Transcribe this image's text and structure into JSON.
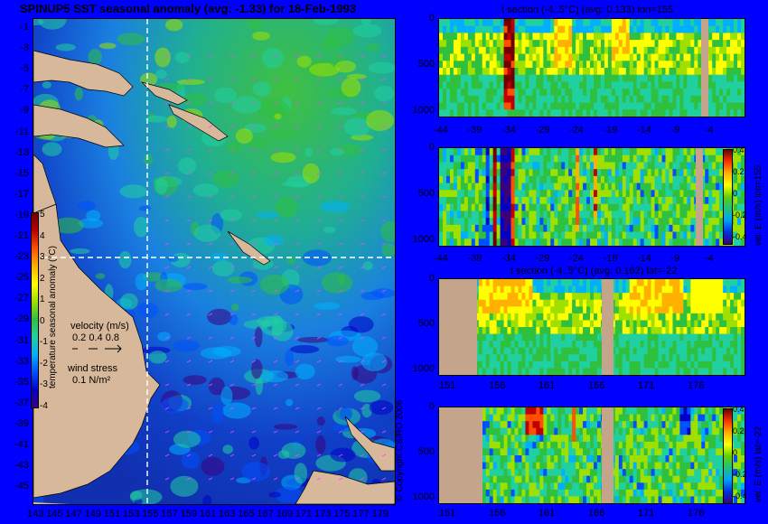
{
  "colors": {
    "background": "#0000ff",
    "land": "#d8b89a",
    "section_land": "#c4a48a"
  },
  "colormap": [
    "#3a007f",
    "#0000c8",
    "#0050ff",
    "#00b0ff",
    "#20d0a0",
    "#30c040",
    "#a0e000",
    "#ffff00",
    "#ffb000",
    "#ff5000",
    "#c00000",
    "#700000"
  ],
  "map": {
    "title": "SPINUP5 SST seasonal anomaly (avg: -1.33) for 18-Feb-1993",
    "y_ticks": [
      "-1",
      "-3",
      "-5",
      "-7",
      "-9",
      "-11",
      "-13",
      "-15",
      "-17",
      "-19",
      "-21",
      "-23",
      "-25",
      "-27",
      "-29",
      "-31",
      "-33",
      "-35",
      "-37",
      "-39",
      "-41",
      "-43",
      "-45"
    ],
    "x_ticks": [
      "143",
      "145",
      "147",
      "149",
      "151",
      "153",
      "155",
      "157",
      "159",
      "161",
      "163",
      "165",
      "167",
      "169",
      "171",
      "173",
      "175",
      "177",
      "179"
    ],
    "colorbar_ticks": [
      "5",
      "4",
      "3",
      "2",
      "1",
      "0",
      "-1",
      "-2",
      "-3",
      "-4"
    ],
    "colorbar_label": "temperature seasonal anomaly (°C)",
    "velocity_label": "velocity (m/s)",
    "velocity_scale": "0.2 0.4 0.8",
    "windstress_label": "wind stress",
    "windstress_scale": "0.1 N/m²",
    "copyright": "© Copyright CSIRO 2006"
  },
  "chart_data": [
    {
      "type": "heatmap",
      "name": "SST seasonal anomaly map",
      "title": "SPINUP5 SST seasonal anomaly (avg: -1.33) for 18-Feb-1993",
      "x_ticks": [
        143,
        145,
        147,
        149,
        151,
        153,
        155,
        157,
        159,
        161,
        163,
        165,
        167,
        169,
        171,
        173,
        175,
        177,
        179
      ],
      "y_ticks": [
        -1,
        -3,
        -5,
        -7,
        -9,
        -11,
        -13,
        -15,
        -17,
        -19,
        -21,
        -23,
        -25,
        -27,
        -29,
        -31,
        -33,
        -35,
        -37,
        -39,
        -41,
        -43,
        -45
      ],
      "xlim": [
        142,
        180
      ],
      "ylim": [
        -45,
        0
      ],
      "colorbar": {
        "label": "temperature seasonal anomaly (°C)",
        "range": [
          -4,
          5
        ]
      },
      "section_lines": {
        "lon": 155,
        "lat": -22
      }
    },
    {
      "type": "heatmap",
      "name": "temperature section lon=155",
      "title": "t section (-4..5°C) (avg: 0.133) lon=155",
      "x_ticks": [
        -44,
        -39,
        -34,
        -29,
        -24,
        -19,
        -14,
        -9,
        -4
      ],
      "y_ticks": [
        0,
        500,
        1000
      ],
      "xlim": [
        -45,
        -1
      ],
      "ylim": [
        1050,
        0
      ]
    },
    {
      "type": "heatmap",
      "name": "velocity section lon=155",
      "x_ticks": [
        -44,
        -39,
        -34,
        -29,
        -24,
        -19,
        -14,
        -9,
        -4
      ],
      "y_ticks": [
        0,
        500,
        1000
      ],
      "xlim": [
        -45,
        -1
      ],
      "ylim": [
        1050,
        0
      ],
      "colorbar": {
        "label": "vel. E (m/s) lon=155",
        "ticks": [
          "0.4",
          "0.2",
          "0",
          "-0.2",
          "-0.4"
        ]
      }
    },
    {
      "type": "heatmap",
      "name": "temperature section lat=-22",
      "title": "t section (-4..5°C) (avg: 0.162) lat=-22",
      "x_ticks": [
        151,
        156,
        161,
        166,
        171,
        176
      ],
      "y_ticks": [
        0,
        500,
        1000
      ],
      "xlim": [
        149.5,
        180
      ],
      "ylim": [
        1050,
        0
      ]
    },
    {
      "type": "heatmap",
      "name": "velocity section lat=-22",
      "x_ticks": [
        151,
        156,
        161,
        166,
        171,
        176
      ],
      "y_ticks": [
        0,
        500,
        1000
      ],
      "xlim": [
        149.5,
        180
      ],
      "ylim": [
        1050,
        0
      ],
      "colorbar": {
        "label": "vel. E (m/s) lat=-22",
        "ticks": [
          "0.4",
          "0.2",
          "0",
          "-0.2",
          "-0.4"
        ]
      }
    }
  ],
  "panels": {
    "p1": {
      "title": "t section (-4..5°C) (avg: 0.133) lon=155"
    },
    "p2": {
      "cb_label": "vel. E (m/s) lon=155",
      "cb_ticks": [
        "0.4",
        "0.2",
        "0",
        "-0.2",
        "-0.4"
      ]
    },
    "p3": {
      "title": "t section (-4..5°C) (avg: 0.162) lat=-22"
    },
    "p4": {
      "cb_label": "vel. E (m/s) lat=-22",
      "cb_ticks": [
        "0.4",
        "0.2",
        "0",
        "-0.2",
        "-0.4"
      ]
    },
    "depth_ticks": [
      "0",
      "500",
      "1000"
    ],
    "lat_ticks": [
      "-44",
      "-39",
      "-34",
      "-29",
      "-24",
      "-19",
      "-14",
      "-9",
      "-4"
    ],
    "lon_ticks": [
      "151",
      "156",
      "161",
      "166",
      "171",
      "176"
    ]
  }
}
